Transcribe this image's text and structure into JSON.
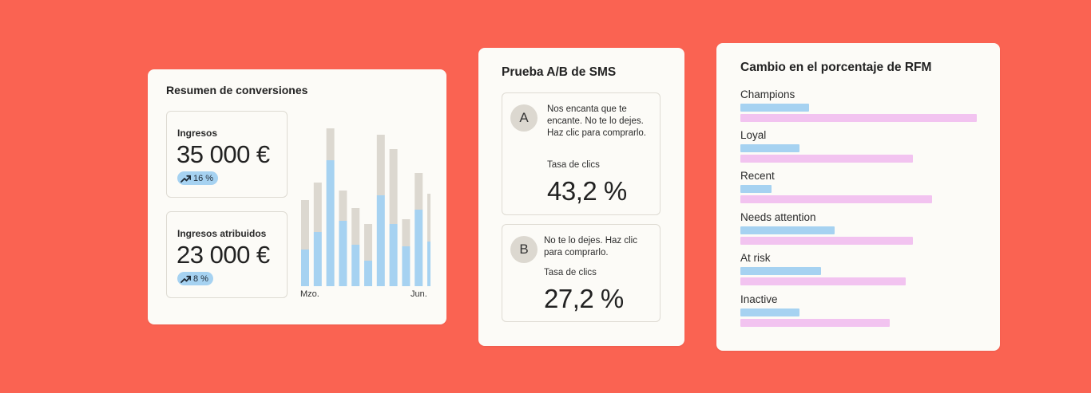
{
  "conversions": {
    "title": "Resumen de conversiones",
    "stats": [
      {
        "label": "Ingresos",
        "value": "35 000 €",
        "change": "16 %"
      },
      {
        "label": "Ingresos atribuidos",
        "value": "23 000 €",
        "change": "8 %"
      }
    ]
  },
  "chart_data": {
    "type": "bar",
    "stacked": true,
    "categories": [
      "Mzo.",
      "",
      "",
      "",
      "",
      "",
      "",
      "",
      "",
      "",
      "Jun."
    ],
    "series": [
      {
        "color": "#a6d2f1",
        "values": [
          23,
          34,
          79,
          41,
          26,
          16,
          57,
          39,
          25,
          48,
          28
        ]
      },
      {
        "color": "#dcd8d0",
        "values": [
          31,
          31,
          20,
          19,
          23,
          23,
          38,
          47,
          17,
          23,
          30
        ]
      }
    ],
    "xlabel": "",
    "ylabel": "",
    "ylim": [
      0,
      100
    ],
    "grid": false,
    "colors": {
      "blue": "#a6d2f1",
      "gray": "#dcd8d0"
    }
  },
  "ab_test": {
    "title": "Prueba A/B de SMS",
    "variants": [
      {
        "letter": "A",
        "message": "Nos encanta que te encante. No te lo dejes. Haz clic para comprarlo.",
        "rate_label": "Tasa de clics",
        "rate": "43,2 %"
      },
      {
        "letter": "B",
        "message": "No te lo dejes. Haz clic para comprarlo.",
        "rate_label": "Tasa de clics",
        "rate": "27,2 %"
      }
    ]
  },
  "rfm": {
    "title": "Cambio en el porcentaje de RFM",
    "max": 100,
    "colors": {
      "blue": "#a6d2f1",
      "pink": "#f2c3f0"
    },
    "rows": [
      {
        "label": "Champions",
        "blue": 29,
        "pink": 100
      },
      {
        "label": "Loyal",
        "blue": 25,
        "pink": 73
      },
      {
        "label": "Recent",
        "blue": 13,
        "pink": 81
      },
      {
        "label": "Needs attention",
        "blue": 40,
        "pink": 73
      },
      {
        "label": "At risk",
        "blue": 34,
        "pink": 70
      },
      {
        "label": "Inactive",
        "blue": 25,
        "pink": 63
      }
    ]
  }
}
